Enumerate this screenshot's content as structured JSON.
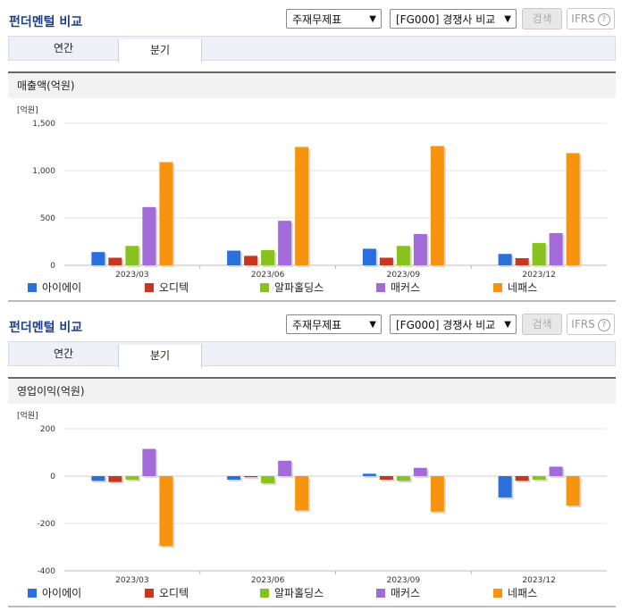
{
  "panels": [
    {
      "title": "펀더멘털 비교",
      "select_statement": "주재무제표",
      "select_peer": "[FG000] 경쟁사 비교",
      "search_label": "검색",
      "ifrs_label": "IFRS",
      "help_glyph": "?",
      "tabs": [
        {
          "label": "연간",
          "active": false
        },
        {
          "label": "분기",
          "active": true
        }
      ],
      "section_title": "매출액(억원)",
      "legend": [
        {
          "label": "아이에이",
          "color": "#2a6fdb"
        },
        {
          "label": "오디텍",
          "color": "#c9361f"
        },
        {
          "label": "알파홀딩스",
          "color": "#88c21e"
        },
        {
          "label": "매커스",
          "color": "#a36ad9"
        },
        {
          "label": "네패스",
          "color": "#f7940f"
        }
      ]
    },
    {
      "title": "펀더멘털 비교",
      "select_statement": "주재무제표",
      "select_peer": "[FG000] 경쟁사 비교",
      "search_label": "검색",
      "ifrs_label": "IFRS",
      "help_glyph": "?",
      "tabs": [
        {
          "label": "연간",
          "active": false
        },
        {
          "label": "분기",
          "active": true
        }
      ],
      "section_title": "영업이익(억원)",
      "legend": [
        {
          "label": "아이에이",
          "color": "#2a6fdb"
        },
        {
          "label": "오디텍",
          "color": "#c9361f"
        },
        {
          "label": "알파홀딩스",
          "color": "#88c21e"
        },
        {
          "label": "매커스",
          "color": "#a36ad9"
        },
        {
          "label": "네패스",
          "color": "#f7940f"
        }
      ]
    }
  ],
  "chart_data": [
    {
      "type": "bar",
      "ylabel": "[억원]",
      "categories": [
        "2023/03",
        "2023/06",
        "2023/09",
        "2023/12"
      ],
      "ylim": [
        0,
        1500
      ],
      "yticks": [
        0,
        500,
        1000,
        1500
      ],
      "ytick_labels": [
        "0",
        "500",
        "1,000",
        "1,500"
      ],
      "grid": true,
      "legend_position": "bottom",
      "series": [
        {
          "name": "아이에이",
          "color": "#2a6fdb",
          "values": [
            140,
            155,
            175,
            120
          ]
        },
        {
          "name": "오디텍",
          "color": "#c9361f",
          "values": [
            80,
            100,
            80,
            75
          ]
        },
        {
          "name": "알파홀딩스",
          "color": "#88c21e",
          "values": [
            205,
            160,
            205,
            235
          ]
        },
        {
          "name": "매커스",
          "color": "#a36ad9",
          "values": [
            615,
            470,
            330,
            340
          ]
        },
        {
          "name": "네패스",
          "color": "#f7940f",
          "values": [
            1090,
            1250,
            1260,
            1185
          ]
        }
      ]
    },
    {
      "type": "bar",
      "ylabel": "[억원]",
      "categories": [
        "2023/03",
        "2023/06",
        "2023/09",
        "2023/12"
      ],
      "ylim": [
        -400,
        200
      ],
      "yticks": [
        -400,
        -200,
        0,
        200
      ],
      "ytick_labels": [
        "-400",
        "-200",
        "0",
        "200"
      ],
      "grid": true,
      "legend_position": "bottom",
      "series": [
        {
          "name": "아이에이",
          "color": "#2a6fdb",
          "values": [
            -20,
            -15,
            10,
            -90
          ]
        },
        {
          "name": "오디텍",
          "color": "#c9361f",
          "values": [
            -25,
            -5,
            -15,
            -20
          ]
        },
        {
          "name": "알파홀딩스",
          "color": "#88c21e",
          "values": [
            -15,
            -30,
            -20,
            -15
          ]
        },
        {
          "name": "매커스",
          "color": "#a36ad9",
          "values": [
            115,
            65,
            35,
            40
          ]
        },
        {
          "name": "네패스",
          "color": "#f7940f",
          "values": [
            -295,
            -145,
            -150,
            -125
          ]
        }
      ]
    }
  ]
}
